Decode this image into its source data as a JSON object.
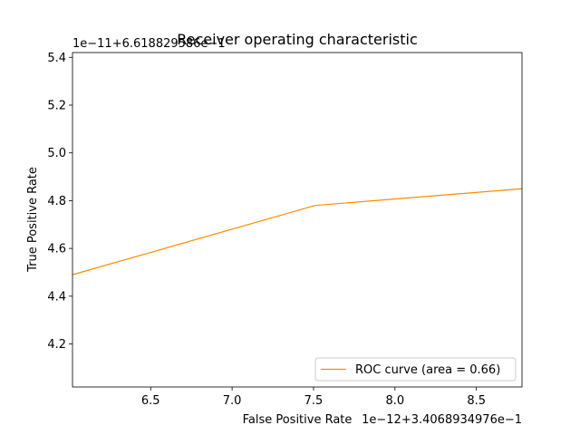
{
  "chart_data": {
    "type": "line",
    "title": "Receiver operating characteristic",
    "xlabel": "False Positive Rate",
    "ylabel": "True Positive Rate",
    "x_offset_label": "1e−12+3.4068934976e−1",
    "y_offset_label": "1e−11+6.618829586e−1",
    "xlim": [
      6.02,
      8.78
    ],
    "ylim": [
      4.02,
      5.42
    ],
    "x_ticks": [
      6.5,
      7.0,
      7.5,
      8.0,
      8.5
    ],
    "x_tick_labels": [
      "6.5",
      "7.0",
      "7.5",
      "8.0",
      "8.5"
    ],
    "y_ticks": [
      4.2,
      4.4,
      4.6,
      4.8,
      5.0,
      5.2,
      5.4
    ],
    "y_tick_labels": [
      "4.2",
      "4.4",
      "4.6",
      "4.8",
      "5.0",
      "5.2",
      "5.4"
    ],
    "grid": false,
    "legend_position": "lower-right",
    "series": [
      {
        "name": "ROC curve (area = 0.66)",
        "color": "#ff8c00",
        "x": [
          6.02,
          7.51,
          8.78
        ],
        "y": [
          4.49,
          4.78,
          4.85
        ]
      }
    ]
  }
}
